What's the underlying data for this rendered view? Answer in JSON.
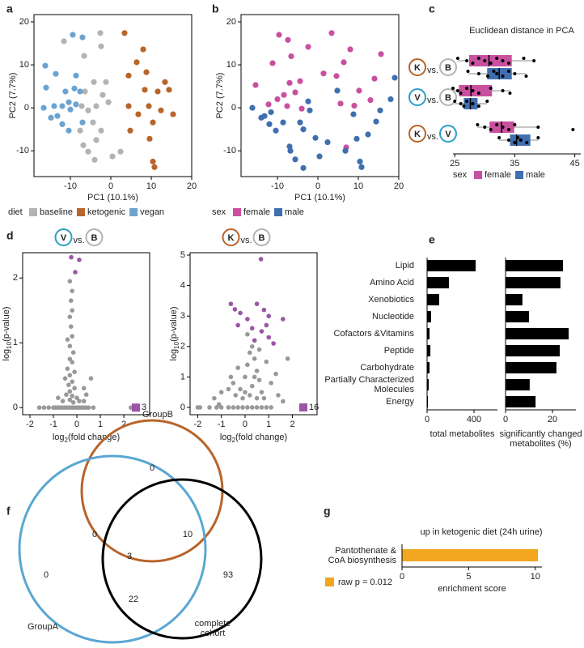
{
  "chart_data": [
    {
      "type": "scatter",
      "panel": "a",
      "xlabel": "PC1 (10.1%)",
      "ylabel": "PC2 (7.7%)",
      "xlim": [
        -19,
        20
      ],
      "ylim": [
        -16,
        21.7
      ],
      "xticks": [
        -10,
        0,
        10,
        20
      ],
      "yticks": [
        -10,
        0,
        10,
        20
      ],
      "legend_title": "diet",
      "series": [
        {
          "name": "baseline",
          "color": "#b3b3b3",
          "x": [
            -11.6,
            -6.6,
            -2.6,
            -2.4,
            -4.2,
            -6.4,
            -2,
            -1.2,
            -0.6,
            -7.2,
            -5.6,
            -3.6,
            -4.4,
            -2.4,
            -3.6,
            -7.6,
            -6.8,
            -5.6,
            -4,
            0.4,
            2.4
          ],
          "values": [
            15.5,
            12.1,
            17.4,
            14.3,
            6,
            3.8,
            3,
            6,
            1.3,
            0.4,
            -0.6,
            0.4,
            -3.4,
            -5.3,
            -7.5,
            -5.3,
            -8.7,
            -10.2,
            -12.1,
            -11.3,
            -10.2
          ]
        },
        {
          "name": "ketogenic",
          "color": "#b8642a",
          "x": [
            3.4,
            8,
            8.8,
            4.4,
            6.4,
            13.4,
            8.4,
            11.6,
            14.4,
            4.4,
            9.4,
            12.4,
            6.8,
            4.8,
            10.4,
            15.4,
            9.6,
            10.4,
            10.8
          ],
          "values": [
            17.4,
            13.6,
            8.3,
            7.5,
            10.6,
            6,
            4.2,
            3.8,
            4.2,
            0.4,
            0.4,
            -0.6,
            -1.5,
            -5.3,
            -3.4,
            -1.5,
            -7.2,
            -12.5,
            -13.8
          ]
        },
        {
          "name": "vegan",
          "color": "#6ba3d0",
          "x": [
            -9.4,
            -7,
            -16.2,
            -13.6,
            -8.6,
            -11.2,
            -9,
            -7.6,
            -10.4,
            -12,
            -16,
            -16.6,
            -14,
            -14.8,
            -13.2,
            -12,
            -10,
            -8.6,
            -7,
            -10.4
          ],
          "values": [
            17,
            16.4,
            9.8,
            7.9,
            7.5,
            3.8,
            4.5,
            3.8,
            1.3,
            0.4,
            4.7,
            0,
            0.4,
            -2.3,
            -1.9,
            -3.8,
            -0.4,
            0.8,
            -3.4,
            -5.3
          ]
        }
      ]
    },
    {
      "type": "scatter",
      "panel": "b",
      "xlabel": "PC1 (10.1%)",
      "ylabel": "PC2 (7.7%)",
      "xlim": [
        -19,
        20
      ],
      "ylim": [
        -16,
        21.7
      ],
      "xticks": [
        -10,
        0,
        10,
        20
      ],
      "yticks": [
        -10,
        0,
        10,
        20
      ],
      "legend_title": "sex",
      "series": [
        {
          "name": "female",
          "color": "#c9509f",
          "x": [
            -9.6,
            -7.4,
            3.4,
            8,
            -11.2,
            -7,
            -4.4,
            -6.6,
            -2.4,
            -5.6,
            -15.4,
            -8.4,
            -10,
            -12.2,
            -7.6,
            1.4,
            4.6,
            6.4,
            14,
            15.6,
            10.2,
            13,
            -4,
            5.6,
            7,
            9
          ],
          "values": [
            17,
            15.8,
            17.4,
            13.6,
            10.4,
            5.8,
            6.2,
            12,
            14.2,
            3.6,
            5.3,
            3,
            2,
            0.8,
            0.4,
            8,
            7.4,
            10.6,
            6.8,
            12.5,
            4,
            1.8,
            -0.2,
            1,
            -9.2,
            0.5
          ]
        },
        {
          "name": "male",
          "color": "#3f6fb0",
          "x": [
            -16.2,
            -14,
            -12,
            -13.2,
            -10.4,
            -8.6,
            -7,
            -3.6,
            -2,
            -0.6,
            0.4,
            2.4,
            -4.4,
            -5.6,
            -6.8,
            -2.4,
            -11.6,
            -3.6,
            8.8,
            12.4,
            15.4,
            9.6,
            10.4,
            10.8,
            19,
            18,
            14.4,
            6.8,
            4.8
          ],
          "values": [
            0,
            -2.3,
            -3.8,
            -1.9,
            -5.3,
            -3.4,
            -9,
            -5,
            -0.6,
            -7,
            -11.3,
            -8,
            -3.4,
            -12,
            -10,
            1.5,
            -1,
            -14,
            -1.5,
            -6.2,
            -0.6,
            -7.2,
            -12.5,
            -13.8,
            7,
            2,
            -3.2,
            -10,
            4
          ]
        }
      ]
    },
    {
      "type": "box",
      "panel": "c",
      "title": "Euclidean distance in PCA",
      "xlim": [
        24.7,
        46
      ],
      "xticks": [
        25,
        35,
        45
      ],
      "legend_title": "sex",
      "categories": [
        {
          "left": "K",
          "left_color": "#b8642a",
          "sep": "vs.",
          "right": "B",
          "right_color": "#b3b3b3"
        },
        {
          "left": "V",
          "left_color": "#2a9fc9",
          "sep": "vs.",
          "right": "B",
          "right_color": "#b3b3b3"
        },
        {
          "left": "K",
          "left_color": "#b8642a",
          "sep": "vs.",
          "right": "V",
          "right_color": "#2a9fc9"
        }
      ],
      "series": [
        {
          "name": "female",
          "color": "#c9509f",
          "boxes": [
            {
              "min": 25.5,
              "q1": 27.4,
              "median": 30.7,
              "q3": 34.5,
              "max": 38.2,
              "points": [
                25.5,
                27,
                28,
                29,
                30,
                31,
                32,
                33,
                34,
                36.5,
                38.2
              ]
            },
            {
              "min": 24.7,
              "q1": 25.7,
              "median": 27.7,
              "q3": 31.2,
              "max": 34.2,
              "points": [
                24.7,
                25.5,
                26,
                27,
                28,
                29,
                31,
                33,
                34.2
              ]
            },
            {
              "min": 28.8,
              "q1": 30.8,
              "median": 32.8,
              "q3": 34.9,
              "max": 38.9,
              "points": [
                28.8,
                30,
                31,
                32,
                33,
                34,
                35,
                38.9,
                44.7
              ]
            }
          ]
        },
        {
          "name": "male",
          "color": "#3f6fb0",
          "boxes": [
            {
              "min": 27.2,
              "q1": 30.4,
              "median": 32.4,
              "q3": 34.5,
              "max": 36.9,
              "points": [
                27.2,
                29,
                30.5,
                31.5,
                32,
                33,
                34,
                35,
                36.9
              ]
            },
            {
              "min": 25,
              "q1": 26.5,
              "median": 27.6,
              "q3": 28.8,
              "max": 30.4,
              "points": [
                25,
                26,
                26.5,
                27,
                28,
                29,
                30.4
              ]
            },
            {
              "min": 32.4,
              "q1": 34.2,
              "median": 35.3,
              "q3": 37.6,
              "max": 38.9,
              "points": [
                32.4,
                34,
                35,
                35.5,
                36,
                37,
                38.9
              ]
            }
          ]
        }
      ]
    },
    {
      "type": "volcano",
      "panel": "d",
      "comparison": {
        "left": "V",
        "left_color": "#2a9fc9",
        "sep": "vs.",
        "right": "B",
        "right_color": "#b3b3b3"
      },
      "xlabel": [
        "log",
        "2",
        "(fold change)"
      ],
      "ylabel": [
        "log",
        "10",
        "(p-value)"
      ],
      "xlim": [
        -2.31,
        3.1
      ],
      "ylim": [
        -0.11,
        2.39
      ],
      "xticks": [
        -2,
        -1,
        0,
        1,
        2
      ],
      "yticks": [
        0,
        1,
        2
      ],
      "count": 3,
      "count_color": "#9b55a6",
      "series": [
        {
          "color": "#999999",
          "x": [
            -1.6,
            -1.4,
            -1.2,
            -1,
            -0.9,
            -0.8,
            -0.7,
            -0.6,
            -0.5,
            -0.4,
            -0.3,
            -0.2,
            -0.1,
            0,
            0.1,
            0.2,
            0.3,
            0.4,
            0.5,
            0.7,
            2.3,
            -0.3,
            -0.2,
            -0.25,
            -0.2,
            -0.3,
            -0.25,
            -0.2,
            -0.4,
            -0.3,
            -0.15,
            -0.3,
            -0.2,
            -0.4,
            -0.1,
            -0.3,
            -0.5,
            -0.2,
            -0.35,
            -0.1,
            -0.3,
            -0.45,
            -0.2,
            0,
            -0.3,
            0.1,
            -0.6,
            -0.15,
            0.3,
            0.4,
            0.6,
            -0.8,
            0.3
          ],
          "values": [
            0,
            0,
            0,
            0,
            0,
            0,
            0,
            0,
            0,
            0,
            0,
            0,
            0,
            0,
            0,
            0,
            0,
            0,
            0,
            0,
            0,
            1.95,
            1.8,
            1.65,
            1.5,
            1.4,
            1.25,
            1.1,
            1.05,
            0.95,
            0.85,
            0.75,
            0.7,
            0.6,
            0.55,
            0.5,
            0.45,
            0.4,
            0.35,
            0.3,
            0.25,
            0.2,
            0.18,
            0.15,
            0.12,
            0.1,
            0.1,
            0.08,
            0.3,
            0.2,
            0.45,
            0.15,
            0.1
          ]
        },
        {
          "color": "#9b55a6",
          "x": [
            -0.24,
            0.1,
            -0.07
          ],
          "values": [
            2.32,
            2.28,
            2.09
          ]
        }
      ]
    },
    {
      "type": "volcano",
      "comparison": {
        "left": "K",
        "left_color": "#b8642a",
        "sep": "vs.",
        "right": "B",
        "right_color": "#b3b3b3"
      },
      "xlabel": [
        "log",
        "2",
        "(fold change)"
      ],
      "ylabel": [
        "log",
        "10",
        "(p-value)"
      ],
      "xlim": [
        -2.32,
        3.04
      ],
      "ylim": [
        -0.24,
        5.08
      ],
      "xticks": [
        -2,
        -1,
        0,
        1,
        2
      ],
      "yticks": [
        0,
        1,
        2,
        3,
        4,
        5
      ],
      "count": 16,
      "count_color": "#9b55a6",
      "series": [
        {
          "color": "#999999",
          "x": [
            -2,
            -1.9,
            -1.5,
            -1.2,
            -1,
            -0.7,
            -0.5,
            -0.3,
            -0.1,
            0.1,
            0.3,
            0.5,
            0.7,
            0.9,
            1.1,
            -0.5,
            -0.3,
            -0.2,
            0,
            0.1,
            0.2,
            0.3,
            0.4,
            0.5,
            0.6,
            0.7,
            0.8,
            0.2,
            0.3,
            0.4,
            0.5,
            -0.1,
            -0.4,
            -0.7,
            -1,
            -1.3,
            0.9,
            1.1,
            1.3,
            1.4,
            1.8,
            0.6,
            0.1,
            -0.6,
            -1.1,
            1.6,
            0
          ],
          "values": [
            0,
            0,
            0,
            0,
            0,
            0,
            0,
            0,
            0,
            0,
            0,
            0,
            0,
            0,
            0,
            0.8,
            1.3,
            0.6,
            1,
            1.4,
            1.8,
            2,
            1.6,
            1.2,
            0.9,
            0.5,
            0.3,
            0.4,
            0.7,
            1,
            0.3,
            0.3,
            0.4,
            0.6,
            0.5,
            0.3,
            1.5,
            0.8,
            1.1,
            0.4,
            1.6,
            1.9,
            2.4,
            1,
            0.1,
            0.2,
            0.5
          ]
        },
        {
          "color": "#9b55a6",
          "x": [
            0.67,
            -0.43,
            -0.2,
            0.1,
            0.5,
            0.8,
            0.9,
            0.7,
            1,
            0.3,
            -0.3,
            0.4,
            1.2,
            1.6,
            -0.6,
            1
          ],
          "values": [
            4.87,
            3.22,
            3.1,
            2.9,
            3.4,
            3.2,
            2.7,
            2.5,
            2.3,
            2.6,
            2.7,
            2.2,
            2.1,
            2.9,
            3.4,
            3
          ]
        }
      ]
    },
    {
      "type": "hbar_pair",
      "panel": "e",
      "color": "#000000",
      "categories": [
        "Lipid",
        "Amino Acid",
        "Xenobiotics",
        "Nucleotide",
        "Cofactors &Vitamins",
        "Peptide",
        "Carbohydrate",
        [
          "Partially Characterized",
          "Molecules"
        ],
        "Energy"
      ],
      "panels": [
        {
          "xlabel": [
            "total metabolites"
          ],
          "xlim": [
            0,
            600
          ],
          "xticks": [
            0,
            400
          ],
          "values": [
            414,
            186,
            103,
            34,
            21,
            28,
            21,
            14,
            7
          ]
        },
        {
          "xlabel": [
            "significantly changed",
            "metabolites (%)"
          ],
          "xlim": [
            0,
            30
          ],
          "xticks": [
            0,
            20
          ],
          "values": [
            24.5,
            23.4,
            7.2,
            10,
            26.9,
            23.1,
            21.7,
            10.3,
            12.8
          ]
        }
      ]
    },
    {
      "type": "venn",
      "panel": "f",
      "sets": [
        {
          "label": [
            "GroupB"
          ],
          "color": "#b8642a"
        },
        {
          "label": [
            "GroupA"
          ],
          "color": "#5aa7d2"
        },
        {
          "label": [
            "complete",
            "cohort"
          ],
          "color": "#000000"
        }
      ],
      "regions": [
        0,
        0,
        10,
        0,
        3,
        22,
        93
      ]
    },
    {
      "type": "hbar",
      "panel": "g",
      "title": "up in ketogenic diet (24h urine)",
      "categories": [
        [
          "Pantothenate &",
          "CoA biosynthesis"
        ]
      ],
      "values": [
        10.2
      ],
      "xlim": [
        0,
        10.5
      ],
      "xticks": [
        0,
        5,
        10
      ],
      "xlabel": "enrichment score",
      "color": "#f2a51f",
      "legend_label": "raw p = 0.012"
    }
  ]
}
